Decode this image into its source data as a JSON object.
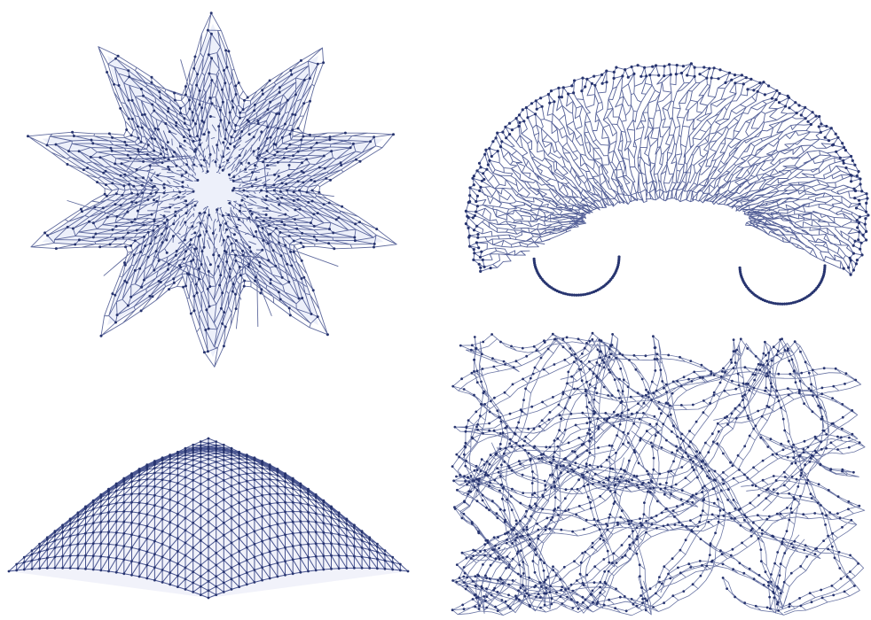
{
  "figure": {
    "colors": {
      "edge": "#2b3a7e",
      "node": "#27346f",
      "face": "#dfe3f5",
      "background": "#ffffff"
    },
    "panels": [
      {
        "id": "star-graph",
        "shape": "ten-pointed star mesh"
      },
      {
        "id": "kidney-graph",
        "shape": "kidney-shaped dense mesh"
      },
      {
        "id": "saddle-graph",
        "shape": "curved saddle surface mesh"
      },
      {
        "id": "tangled-graph",
        "shape": "tangled irregular mesh"
      }
    ]
  }
}
